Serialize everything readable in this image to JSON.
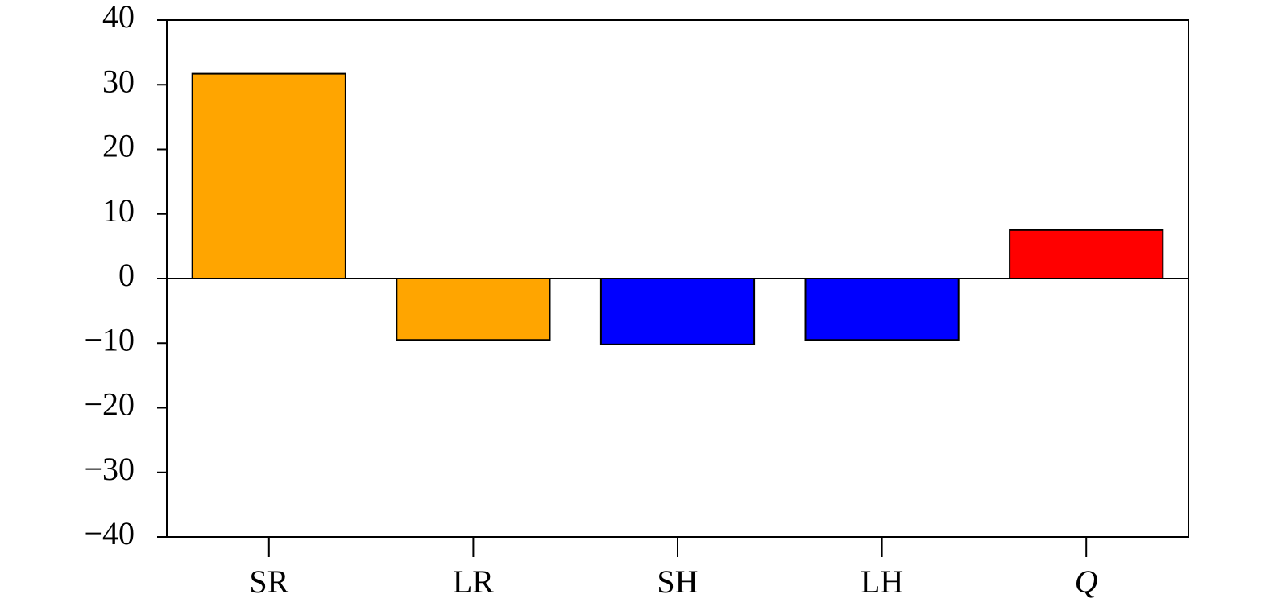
{
  "chart_data": {
    "type": "bar",
    "categories": [
      "SR",
      "LR",
      "SH",
      "LH",
      "Q"
    ],
    "values": [
      31.7,
      -9.5,
      -10.2,
      -9.5,
      7.5
    ],
    "colors": [
      "#ffa500",
      "#ffa500",
      "#0000ff",
      "#0000ff",
      "#ff0000"
    ],
    "ylim": [
      -40,
      40
    ],
    "yticks": [
      {
        "value": -40,
        "label": "−40"
      },
      {
        "value": -30,
        "label": "−30"
      },
      {
        "value": -20,
        "label": "−20"
      },
      {
        "value": -10,
        "label": "−10"
      },
      0,
      10,
      20,
      30,
      40
    ],
    "grid": false
  }
}
